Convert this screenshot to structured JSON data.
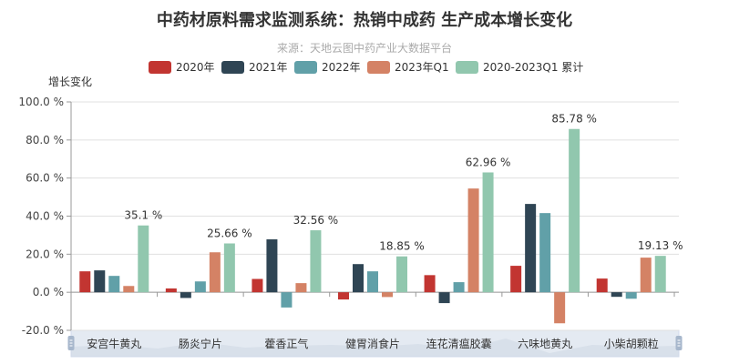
{
  "chart_data": {
    "type": "bar",
    "title": "中药材原料需求监测系统：热销中成药 生产成本增长变化",
    "subtitle": "来源：天地云图中药产业大数据平台",
    "xlabel": "",
    "ylabel": "增长变化",
    "ylim": [
      -20,
      100
    ],
    "yticks": [
      100,
      80,
      60,
      40,
      20,
      0,
      -20
    ],
    "ytick_labels": [
      "100.0 %",
      "80.0 %",
      "60.0 %",
      "40.0 %",
      "20.0 %",
      "0.0 %",
      "-20.0 %"
    ],
    "grid": true,
    "legend_position": "top-center",
    "categories": [
      "安宫牛黄丸",
      "肠炎宁片",
      "藿香正气",
      "健胃消食片",
      "连花清瘟胶囊",
      "六味地黄丸",
      "小柴胡颗粒"
    ],
    "series": [
      {
        "name": "2020年",
        "color": "#c23531",
        "values": [
          11,
          2,
          7,
          -3.8,
          9,
          13.9,
          7.2
        ]
      },
      {
        "name": "2021年",
        "color": "#2f4554",
        "values": [
          11.5,
          -3,
          27.8,
          14.8,
          -5.7,
          46.4,
          -2.4
        ]
      },
      {
        "name": "2022年",
        "color": "#61a0a8",
        "values": [
          8.6,
          5.7,
          -8,
          11,
          5.3,
          41.6,
          -3.4
        ]
      },
      {
        "name": "2023年Q1",
        "color": "#d48265",
        "values": [
          3.3,
          21,
          4.8,
          -2.5,
          54.5,
          -16.3,
          18.2
        ]
      },
      {
        "name": "2020-2023Q1 累计",
        "color": "#91c7ae",
        "values": [
          35.1,
          25.66,
          32.56,
          18.85,
          62.96,
          85.78,
          19.13
        ],
        "data_labels": [
          "35.1 %",
          "25.66 %",
          "32.56 %",
          "18.85 %",
          "62.96 %",
          "85.78 %",
          "19.13 %"
        ]
      }
    ]
  }
}
